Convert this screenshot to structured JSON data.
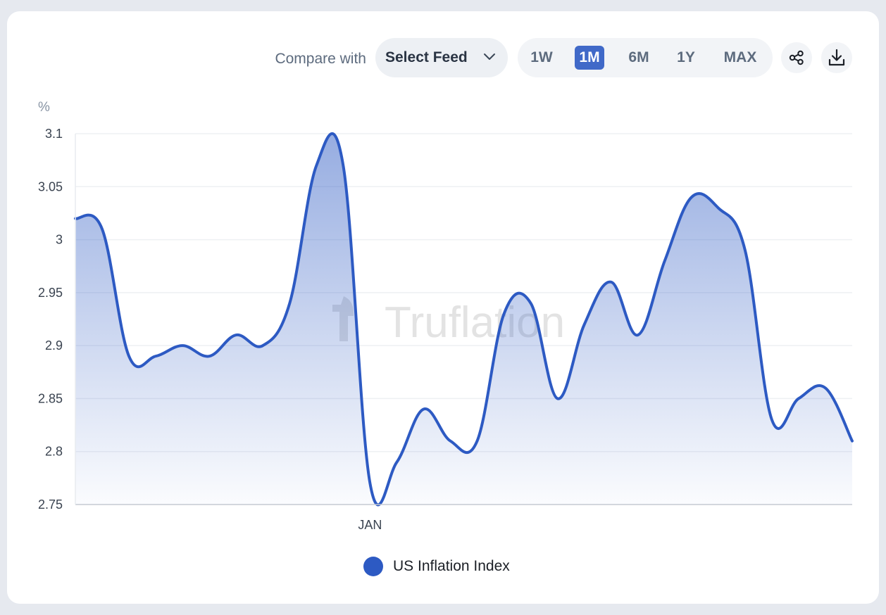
{
  "toolbar": {
    "compare_label": "Compare with",
    "select_feed_label": "Select Feed",
    "ranges": [
      "1W",
      "1M",
      "6M",
      "1Y",
      "MAX"
    ],
    "active_range": "1M",
    "share_icon": "share-icon",
    "download_icon": "download-icon"
  },
  "watermark": "Truflation",
  "colors": {
    "accent": "#2d5ac3",
    "active_button": "#4069c8"
  },
  "chart_data": {
    "type": "area",
    "ylabel": "%",
    "ylim": [
      2.75,
      3.1
    ],
    "yticks": [
      "3.1",
      "3.05",
      "3",
      "2.95",
      "2.9",
      "2.85",
      "2.8",
      "2.75"
    ],
    "xtick_label": "JAN",
    "xtick_index": 11,
    "legend_position": "bottom",
    "grid": true,
    "series": [
      {
        "name": "US Inflation Index",
        "color": "#2d5ac3",
        "values": [
          3.02,
          3.01,
          2.89,
          2.89,
          2.9,
          2.89,
          2.91,
          2.9,
          2.94,
          3.07,
          3.07,
          2.77,
          2.79,
          2.84,
          2.81,
          2.81,
          2.93,
          2.94,
          2.85,
          2.92,
          2.96,
          2.91,
          2.98,
          3.04,
          3.03,
          2.99,
          2.83,
          2.85,
          2.86,
          2.81
        ]
      }
    ]
  }
}
